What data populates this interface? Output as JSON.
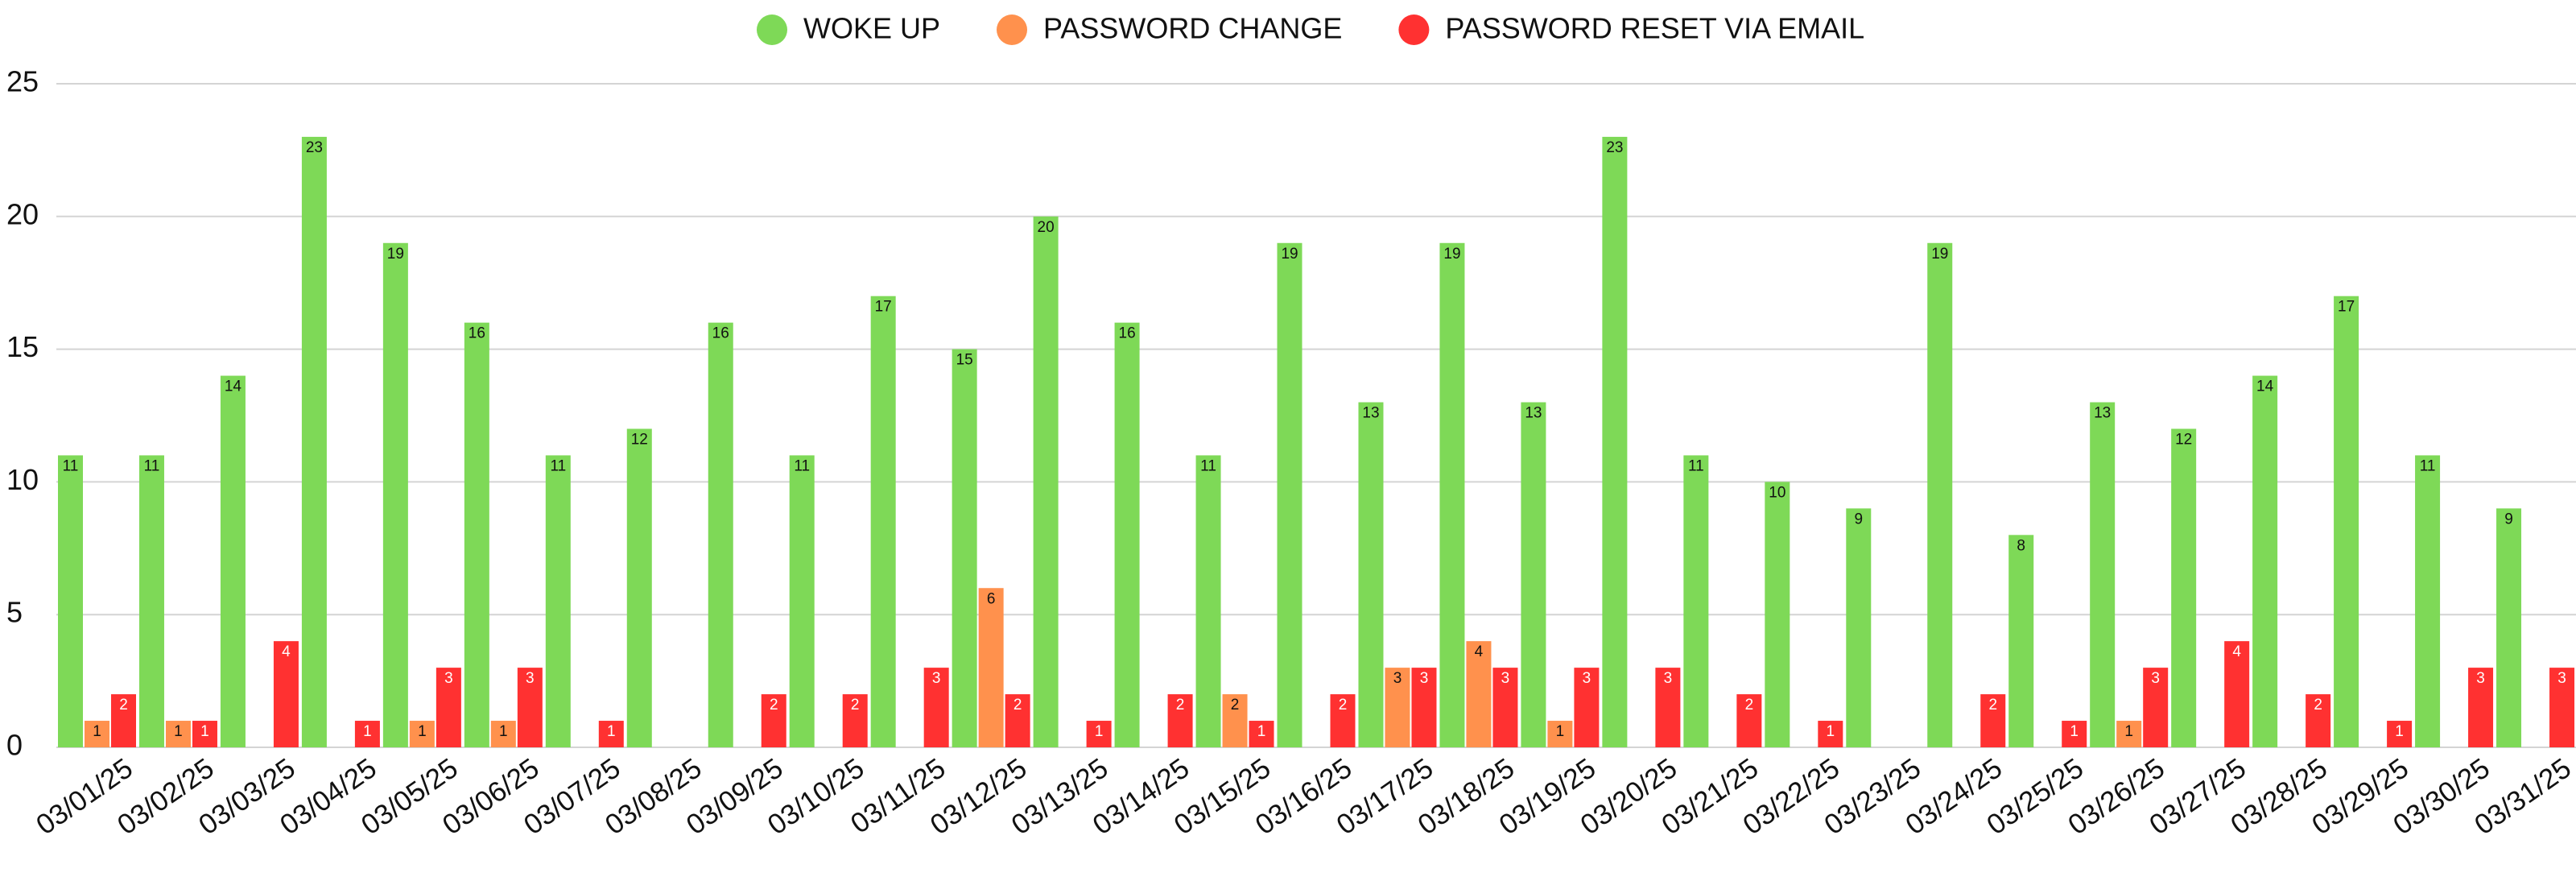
{
  "chart_data": {
    "type": "bar",
    "categories": [
      "03/01/25",
      "03/02/25",
      "03/03/25",
      "03/04/25",
      "03/05/25",
      "03/06/25",
      "03/07/25",
      "03/08/25",
      "03/09/25",
      "03/10/25",
      "03/11/25",
      "03/12/25",
      "03/13/25",
      "03/14/25",
      "03/15/25",
      "03/16/25",
      "03/17/25",
      "03/18/25",
      "03/19/25",
      "03/20/25",
      "03/21/25",
      "03/22/25",
      "03/23/25",
      "03/24/25",
      "03/25/25",
      "03/26/25",
      "03/27/25",
      "03/28/25",
      "03/29/25",
      "03/30/25",
      "03/31/25"
    ],
    "series": [
      {
        "name": "WOKE UP",
        "color": "#7ed957",
        "values": [
          11,
          11,
          14,
          23,
          19,
          16,
          11,
          12,
          16,
          11,
          17,
          15,
          20,
          16,
          11,
          19,
          13,
          19,
          13,
          23,
          11,
          10,
          9,
          19,
          8,
          13,
          12,
          14,
          17,
          11,
          9
        ]
      },
      {
        "name": "PASSWORD CHANGE",
        "color": "#ff914d",
        "values": [
          1,
          1,
          null,
          null,
          1,
          1,
          null,
          null,
          null,
          null,
          null,
          6,
          null,
          null,
          2,
          null,
          3,
          4,
          1,
          null,
          null,
          null,
          null,
          null,
          null,
          1,
          null,
          null,
          null,
          null,
          null
        ]
      },
      {
        "name": "PASSWORD RESET VIA EMAIL",
        "color": "#ff3131",
        "values": [
          2,
          1,
          4,
          1,
          3,
          3,
          1,
          null,
          2,
          2,
          3,
          2,
          1,
          2,
          1,
          2,
          3,
          3,
          3,
          3,
          2,
          1,
          null,
          2,
          1,
          3,
          4,
          2,
          1,
          3,
          3
        ]
      }
    ],
    "ylim": [
      0,
      25
    ],
    "yticks": [
      0,
      5,
      10,
      15,
      20,
      25
    ],
    "grid": true,
    "legend": "top"
  }
}
